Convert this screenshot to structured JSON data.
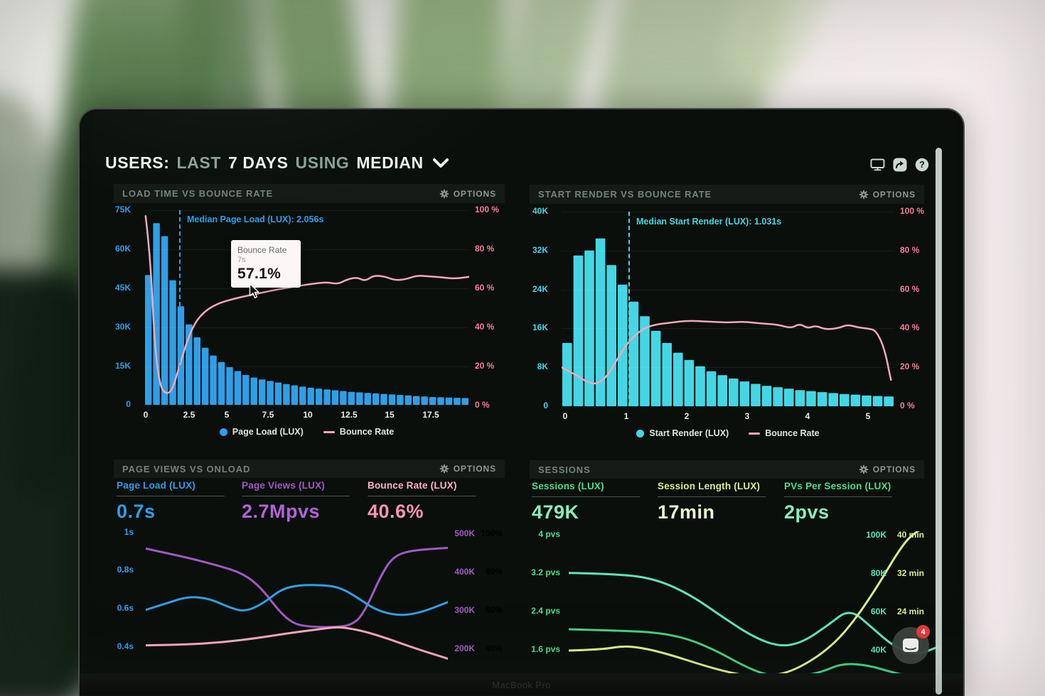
{
  "laptop_label": "MacBook Pro",
  "colors": {
    "blue": "#2f9fe8",
    "cyan": "#45d6e4",
    "pink_line": "#f3a8ba",
    "pink_axis": "#f87e98",
    "purple": "#a05bbf",
    "purple_bright": "#b263d6",
    "pink_label": "#ffb3c6",
    "pink_value": "#f795b1",
    "mint": "#4ade8f",
    "mint_light": "#8aeebb",
    "teal": "#5ee6b9",
    "yellow_green": "#d6ee8e",
    "yellow_light": "#edf8cb",
    "green_line": "#44d184",
    "white_text": "#f1f4f1",
    "sage_text": "#8ca295",
    "panel_title": "#74827b",
    "icon": "#ccd9d1",
    "scrollbar": "#ccd8d0",
    "badge": "#e23b3b",
    "screen_bg": "#0a0f0c"
  },
  "header": {
    "users_label": "USERS:",
    "last_label": "LAST",
    "days_label": "7 DAYS",
    "using_label": "USING",
    "median_label": "MEDIAN",
    "icons": [
      "display-icon",
      "share-icon",
      "help-icon"
    ],
    "help_glyph": "?"
  },
  "panels": {
    "load_time": {
      "title": "LOAD TIME VS BOUNCE RATE",
      "options": "OPTIONS",
      "median_annotation": "Median Page Load (LUX): 2.056s",
      "tooltip": {
        "title": "Bounce Rate",
        "x_value": "7s",
        "value": "57.1%"
      },
      "y_left": [
        "75K",
        "60K",
        "45K",
        "30K",
        "15K",
        "0"
      ],
      "y_right": [
        "100 %",
        "80 %",
        "60 %",
        "40 %",
        "20 %",
        "0 %"
      ],
      "x_ticks": [
        "0",
        "2.5",
        "5",
        "7.5",
        "10",
        "12.5",
        "15",
        "17.5"
      ],
      "legend": [
        {
          "label": "Page Load (LUX)",
          "marker": "dot"
        },
        {
          "label": "Bounce Rate",
          "marker": "line"
        }
      ],
      "chart_data": {
        "type": "bar+line",
        "x_unit": "seconds",
        "y_left_max_k": 75,
        "median_seconds": 2.056,
        "bar_series": "Page Load (LUX)",
        "bar_values_k": [
          50,
          70,
          65,
          48,
          38,
          31,
          26,
          22,
          19,
          16.5,
          14.5,
          13,
          11.5,
          10.5,
          9.8,
          9.2,
          8.6,
          8,
          7.5,
          7,
          6.6,
          6.2,
          5.9,
          5.6,
          5.3,
          5,
          4.8,
          4.6,
          4.4,
          4.2,
          4,
          3.8,
          3.6,
          3.4,
          3.2,
          3,
          2.9,
          2.8,
          2.7,
          2.6
        ],
        "line_series": "Bounce Rate",
        "line_points_pct": [
          [
            0.004,
            97
          ],
          [
            0.018,
            78
          ],
          [
            0.032,
            30
          ],
          [
            0.048,
            10
          ],
          [
            0.065,
            5.5
          ],
          [
            0.085,
            7
          ],
          [
            0.105,
            18
          ],
          [
            0.13,
            32
          ],
          [
            0.155,
            42
          ],
          [
            0.185,
            48
          ],
          [
            0.225,
            52
          ],
          [
            0.275,
            54.5
          ],
          [
            0.33,
            56.5
          ],
          [
            0.4,
            59
          ],
          [
            0.47,
            61
          ],
          [
            0.53,
            62.5
          ],
          [
            0.565,
            63
          ],
          [
            0.595,
            62
          ],
          [
            0.625,
            64.5
          ],
          [
            0.655,
            65.5
          ],
          [
            0.68,
            63.5
          ],
          [
            0.705,
            66.5
          ],
          [
            0.74,
            66
          ],
          [
            0.77,
            64
          ],
          [
            0.805,
            64.5
          ],
          [
            0.84,
            66.5
          ],
          [
            0.875,
            66
          ],
          [
            0.915,
            65.5
          ],
          [
            0.955,
            64.8
          ],
          [
            1.0,
            65.8
          ]
        ]
      }
    },
    "start_render": {
      "title": "START RENDER VS BOUNCE RATE",
      "options": "OPTIONS",
      "median_annotation": "Median Start Render (LUX): 1.031s",
      "y_left": [
        "40K",
        "32K",
        "24K",
        "16K",
        "8K",
        "0"
      ],
      "y_right": [
        "100 %",
        "80 %",
        "60 %",
        "40 %",
        "20 %",
        "0 %"
      ],
      "x_ticks": [
        "0",
        "1",
        "2",
        "3",
        "4",
        "5"
      ],
      "legend": [
        {
          "label": "Start Render (LUX)",
          "marker": "dot"
        },
        {
          "label": "Bounce Rate",
          "marker": "line"
        }
      ],
      "chart_data": {
        "type": "bar+line",
        "x_unit": "seconds",
        "y_left_max_k": 40,
        "median_seconds": 1.031,
        "bar_series": "Start Render (LUX)",
        "bar_values_k": [
          13,
          31,
          32,
          34.5,
          29,
          25,
          21.5,
          18.5,
          15.5,
          13,
          11,
          9.5,
          8.2,
          7.2,
          6.4,
          5.7,
          5.1,
          4.6,
          4.2,
          3.9,
          3.6,
          3.3,
          3.1,
          2.9,
          2.7,
          2.5,
          2.4,
          2.2,
          2.1,
          2
        ],
        "line_series": "Bounce Rate",
        "line_points_pct": [
          [
            0,
            20
          ],
          [
            0.04,
            16.5
          ],
          [
            0.08,
            12
          ],
          [
            0.11,
            11.5
          ],
          [
            0.14,
            16
          ],
          [
            0.17,
            25
          ],
          [
            0.2,
            33
          ],
          [
            0.24,
            39.5
          ],
          [
            0.28,
            42
          ],
          [
            0.33,
            43
          ],
          [
            0.38,
            44
          ],
          [
            0.44,
            43.5
          ],
          [
            0.5,
            43
          ],
          [
            0.55,
            43.5
          ],
          [
            0.6,
            42.5
          ],
          [
            0.65,
            42
          ],
          [
            0.69,
            40
          ],
          [
            0.715,
            42.5
          ],
          [
            0.74,
            40
          ],
          [
            0.765,
            41.5
          ],
          [
            0.79,
            39.5
          ],
          [
            0.83,
            40
          ],
          [
            0.86,
            42
          ],
          [
            0.89,
            40.5
          ],
          [
            0.92,
            40
          ],
          [
            0.945,
            39
          ],
          [
            0.97,
            30
          ],
          [
            0.99,
            13.5
          ]
        ]
      }
    },
    "page_views": {
      "title": "PAGE VIEWS VS ONLOAD",
      "options": "OPTIONS",
      "metrics": [
        {
          "label": "Page Load (LUX)",
          "value": "0.7s"
        },
        {
          "label": "Page Views (LUX)",
          "value": "2.7Mpvs"
        },
        {
          "label": "Bounce Rate (LUX)",
          "value": "40.6%"
        }
      ],
      "y_left": [
        "1s",
        "0.8s",
        "0.6s",
        "0.4s"
      ],
      "y_right_views": [
        "500K",
        "400K",
        "300K",
        "200K"
      ],
      "y_right_bounce": [
        "100%",
        "80%",
        "60%",
        "40%"
      ],
      "chart_data": {
        "type": "line",
        "y_left_ticks_s": [
          1,
          0.8,
          0.6,
          0.4
        ],
        "y_right_ticks_views_k": [
          500,
          400,
          300,
          200
        ],
        "y_right_ticks_bounce_pct": [
          100,
          80,
          60,
          40
        ],
        "series": [
          {
            "name": "Page Load (LUX)",
            "unit": "s",
            "points": [
              [
                0,
                0.595
              ],
              [
                0.07,
                0.63
              ],
              [
                0.14,
                0.665
              ],
              [
                0.21,
                0.655
              ],
              [
                0.28,
                0.605
              ],
              [
                0.33,
                0.585
              ],
              [
                0.39,
                0.63
              ],
              [
                0.45,
                0.705
              ],
              [
                0.51,
                0.725
              ],
              [
                0.58,
                0.725
              ],
              [
                0.64,
                0.715
              ],
              [
                0.7,
                0.66
              ],
              [
                0.76,
                0.595
              ],
              [
                0.83,
                0.565
              ],
              [
                0.9,
                0.575
              ],
              [
                1.0,
                0.635
              ]
            ]
          },
          {
            "name": "Page Views (LUX)",
            "unit": "K pvs",
            "points": [
              [
                0,
                462
              ],
              [
                0.12,
                442
              ],
              [
                0.24,
                418
              ],
              [
                0.32,
                398
              ],
              [
                0.38,
                362
              ],
              [
                0.44,
                300
              ],
              [
                0.49,
                265
              ],
              [
                0.55,
                258
              ],
              [
                0.62,
                257
              ],
              [
                0.68,
                262
              ],
              [
                0.72,
                290
              ],
              [
                0.78,
                395
              ],
              [
                0.82,
                442
              ],
              [
                0.88,
                458
              ],
              [
                1.0,
                464
              ]
            ]
          },
          {
            "name": "Bounce Rate (LUX)",
            "unit": "%",
            "points": [
              [
                0,
                42
              ],
              [
                0.12,
                42.3
              ],
              [
                0.25,
                43.5
              ],
              [
                0.38,
                46
              ],
              [
                0.48,
                48.5
              ],
              [
                0.58,
                50.5
              ],
              [
                0.63,
                51.5
              ],
              [
                0.67,
                51
              ],
              [
                0.73,
                49
              ],
              [
                0.81,
                45
              ],
              [
                0.89,
                40.5
              ],
              [
                1.0,
                35
              ]
            ]
          }
        ]
      }
    },
    "sessions": {
      "title": "SESSIONS",
      "options": "OPTIONS",
      "metrics": [
        {
          "label": "Sessions (LUX)",
          "value": "479K"
        },
        {
          "label": "Session Length (LUX)",
          "value": "17min"
        },
        {
          "label": "PVs Per Session (LUX)",
          "value": "2pvs"
        }
      ],
      "y_left": [
        "4 pvs",
        "3.2 pvs",
        "2.4 pvs",
        "1.6 pvs"
      ],
      "y_right_sessions": [
        "100K",
        "80K",
        "60K",
        "40K"
      ],
      "y_right_length": [
        "40 min",
        "32 min",
        "24 min"
      ],
      "chart_data": {
        "type": "line",
        "y_left_ticks_pvs": [
          4,
          3.2,
          2.4,
          1.6
        ],
        "y_right_ticks_sessions_k": [
          100,
          80,
          60,
          40
        ],
        "y_right_ticks_length_min": [
          40,
          32,
          24
        ],
        "series": [
          {
            "name": "Sessions (LUX)",
            "unit": "K",
            "points": [
              [
                0,
                80.5
              ],
              [
                0.14,
                80
              ],
              [
                0.24,
                77
              ],
              [
                0.33,
                69
              ],
              [
                0.42,
                57
              ],
              [
                0.5,
                47
              ],
              [
                0.57,
                42
              ],
              [
                0.63,
                44
              ],
              [
                0.7,
                53
              ],
              [
                0.76,
                62
              ],
              [
                0.82,
                52
              ],
              [
                0.88,
                42
              ],
              [
                0.94,
                37.5
              ],
              [
                1.0,
                42
              ]
            ]
          },
          {
            "name": "Session Length (LUX)",
            "unit": "min",
            "points": [
              [
                0,
                16
              ],
              [
                0.09,
                16.2
              ],
              [
                0.15,
                17
              ],
              [
                0.21,
                16.4
              ],
              [
                0.28,
                15
              ],
              [
                0.36,
                13
              ],
              [
                0.43,
                11.5
              ],
              [
                0.5,
                10.5
              ],
              [
                0.58,
                11
              ],
              [
                0.65,
                13.5
              ],
              [
                0.72,
                17.5
              ],
              [
                0.78,
                23
              ],
              [
                0.84,
                30
              ],
              [
                0.89,
                36.5
              ],
              [
                0.93,
                40.5
              ],
              [
                1.0,
                43
              ]
            ]
          },
          {
            "name": "PVs Per Session (LUX)",
            "unit": "pvs",
            "points": [
              [
                0,
                2.03
              ],
              [
                0.14,
                2.0
              ],
              [
                0.24,
                1.96
              ],
              [
                0.32,
                1.84
              ],
              [
                0.4,
                1.58
              ],
              [
                0.47,
                1.28
              ],
              [
                0.53,
                1.08
              ],
              [
                0.6,
                1.02
              ],
              [
                0.68,
                1.12
              ],
              [
                0.74,
                1.32
              ],
              [
                0.81,
                1.28
              ],
              [
                0.88,
                1.12
              ],
              [
                0.94,
                1.02
              ],
              [
                1.0,
                1.1
              ]
            ]
          }
        ]
      }
    }
  },
  "chat": {
    "badge": "4"
  }
}
